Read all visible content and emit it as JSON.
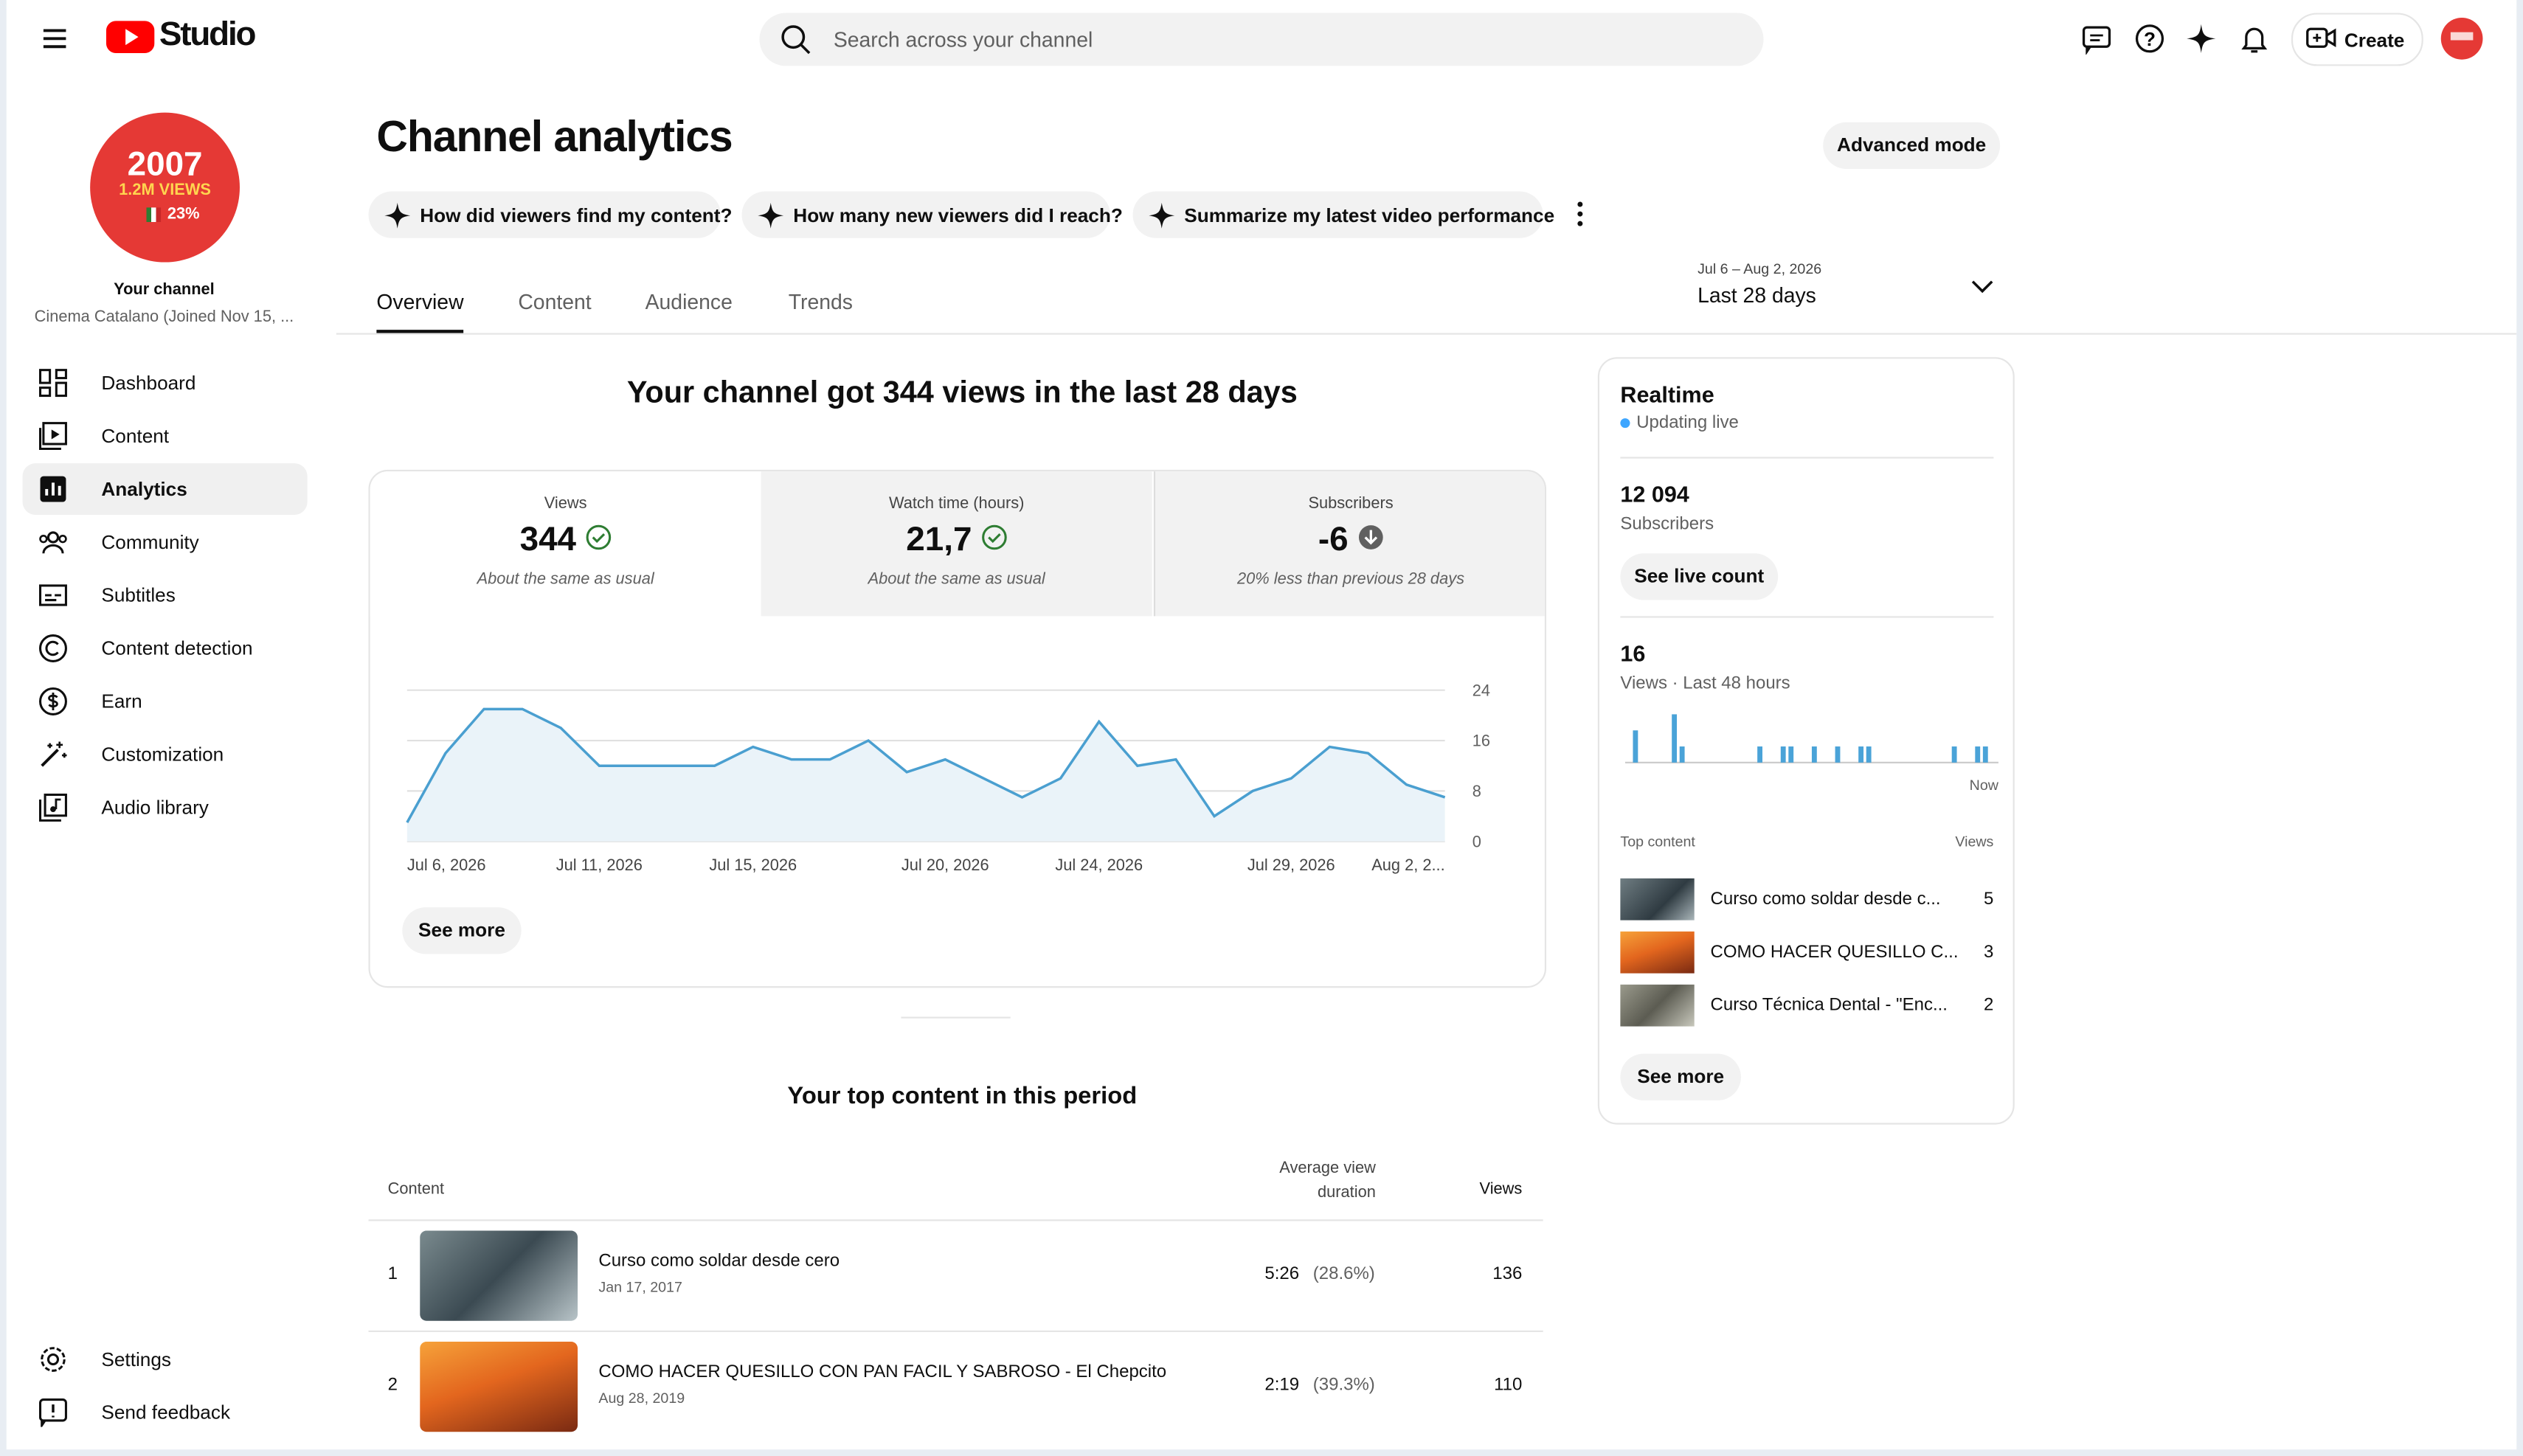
{
  "header": {
    "logo": "Studio",
    "search_placeholder": "Search across your channel",
    "create": "Create"
  },
  "sidebar": {
    "avatar": {
      "line1": "2007",
      "line2": "1.2M VIEWS",
      "line3": "23%"
    },
    "channel_label": "Your channel",
    "channel_name": "Cinema Catalano (Joined Nov 15, ...",
    "nav": [
      "Dashboard",
      "Content",
      "Analytics",
      "Community",
      "Subtitles",
      "Content detection",
      "Earn",
      "Customization",
      "Audio library"
    ],
    "footer_nav": [
      "Settings",
      "Send feedback"
    ]
  },
  "page": {
    "title": "Channel analytics",
    "advanced_mode": "Advanced mode",
    "suggestions": [
      "How did viewers find my content?",
      "How many new viewers did I reach?",
      "Summarize my latest video performance"
    ],
    "tabs": [
      "Overview",
      "Content",
      "Audience",
      "Trends"
    ],
    "date_range": "Jul 6 – Aug 2, 2026",
    "period": "Last 28 days"
  },
  "overview": {
    "headline": "Your channel got 344 views in the last 28 days",
    "metrics": [
      {
        "label": "Views",
        "value": 344,
        "note": "About the same as usual"
      },
      {
        "label": "Watch time (hours)",
        "value": "21,7",
        "note": "About the same as usual"
      },
      {
        "label": "Subscribers",
        "value": -6,
        "note": "20% less than previous 28 days"
      }
    ],
    "see_more": "See more"
  },
  "views_chart": {
    "type": "line",
    "categories": [
      "Jul 6, 2026",
      null,
      null,
      null,
      null,
      "Jul 11, 2026",
      null,
      null,
      null,
      "Jul 15, 2026",
      null,
      null,
      null,
      null,
      "Jul 20, 2026",
      null,
      null,
      null,
      "Jul 24, 2026",
      null,
      null,
      null,
      null,
      "Jul 29, 2026",
      null,
      null,
      null,
      "Aug 2, 2..."
    ],
    "values": [
      3,
      14,
      21,
      21,
      18,
      12,
      12,
      12,
      12,
      15,
      13,
      13,
      16,
      11,
      13,
      10,
      7,
      10,
      19,
      12,
      13,
      4,
      8,
      10,
      15,
      14,
      9,
      7
    ],
    "ylim": [
      0,
      24
    ],
    "yticks": [
      0,
      8,
      16,
      24
    ],
    "color": "#4a9fd0",
    "grid": true
  },
  "realtime": {
    "title": "Realtime",
    "status": "Updating live",
    "subscribers": "12 094",
    "subscribers_label": "Subscribers",
    "see_live_count": "See live count",
    "views": 16,
    "views_label": "Views · Last 48 hours",
    "views_chart": {
      "type": "bar",
      "values": [
        0,
        2,
        0,
        0,
        0,
        0,
        3,
        1,
        0,
        0,
        0,
        0,
        0,
        0,
        0,
        0,
        0,
        1,
        0,
        0,
        1,
        1,
        0,
        0,
        1,
        0,
        0,
        1,
        0,
        0,
        1,
        1,
        0,
        0,
        0,
        0,
        0,
        0,
        0,
        0,
        0,
        0,
        1,
        0,
        0,
        1,
        1,
        0
      ],
      "xlabel": "Now",
      "color": "#4aa3d8"
    },
    "top_content_header": {
      "content": "Top content",
      "views": "Views"
    },
    "top_content": [
      {
        "title": "Curso como soldar desde c...",
        "views": 5
      },
      {
        "title": "COMO HACER QUESILLO C...",
        "views": 3
      },
      {
        "title": "Curso Técnica Dental - \"Enc...",
        "views": 2
      }
    ],
    "see_more": "See more"
  },
  "top_content": {
    "title": "Your top content in this period",
    "columns": [
      "Content",
      "Average view duration",
      "Views"
    ],
    "rows": [
      {
        "rank": 1,
        "title": "Curso como soldar desde cero",
        "date": "Jan 17, 2017",
        "duration": "5:26",
        "percent": "(28.6%)",
        "views": 136
      },
      {
        "rank": 2,
        "title": "COMO HACER QUESILLO CON PAN FACIL Y SABROSO - El Chepcito",
        "date": "Aug 28, 2019",
        "duration": "2:19",
        "percent": "(39.3%)",
        "views": 110
      }
    ]
  }
}
